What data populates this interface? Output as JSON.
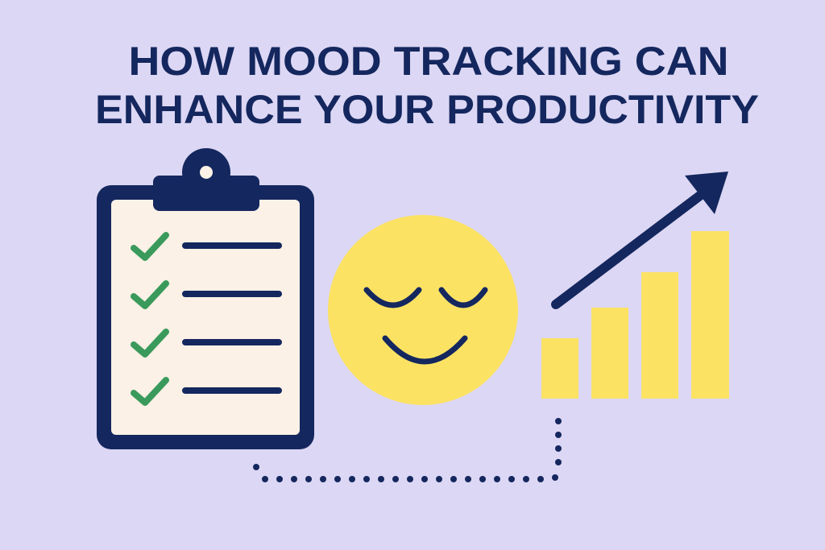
{
  "title": {
    "lines": [
      "HOW MOOD TRACKING CAN",
      "ENHANCE YOUR PRODUCTIVITY"
    ]
  }
}
